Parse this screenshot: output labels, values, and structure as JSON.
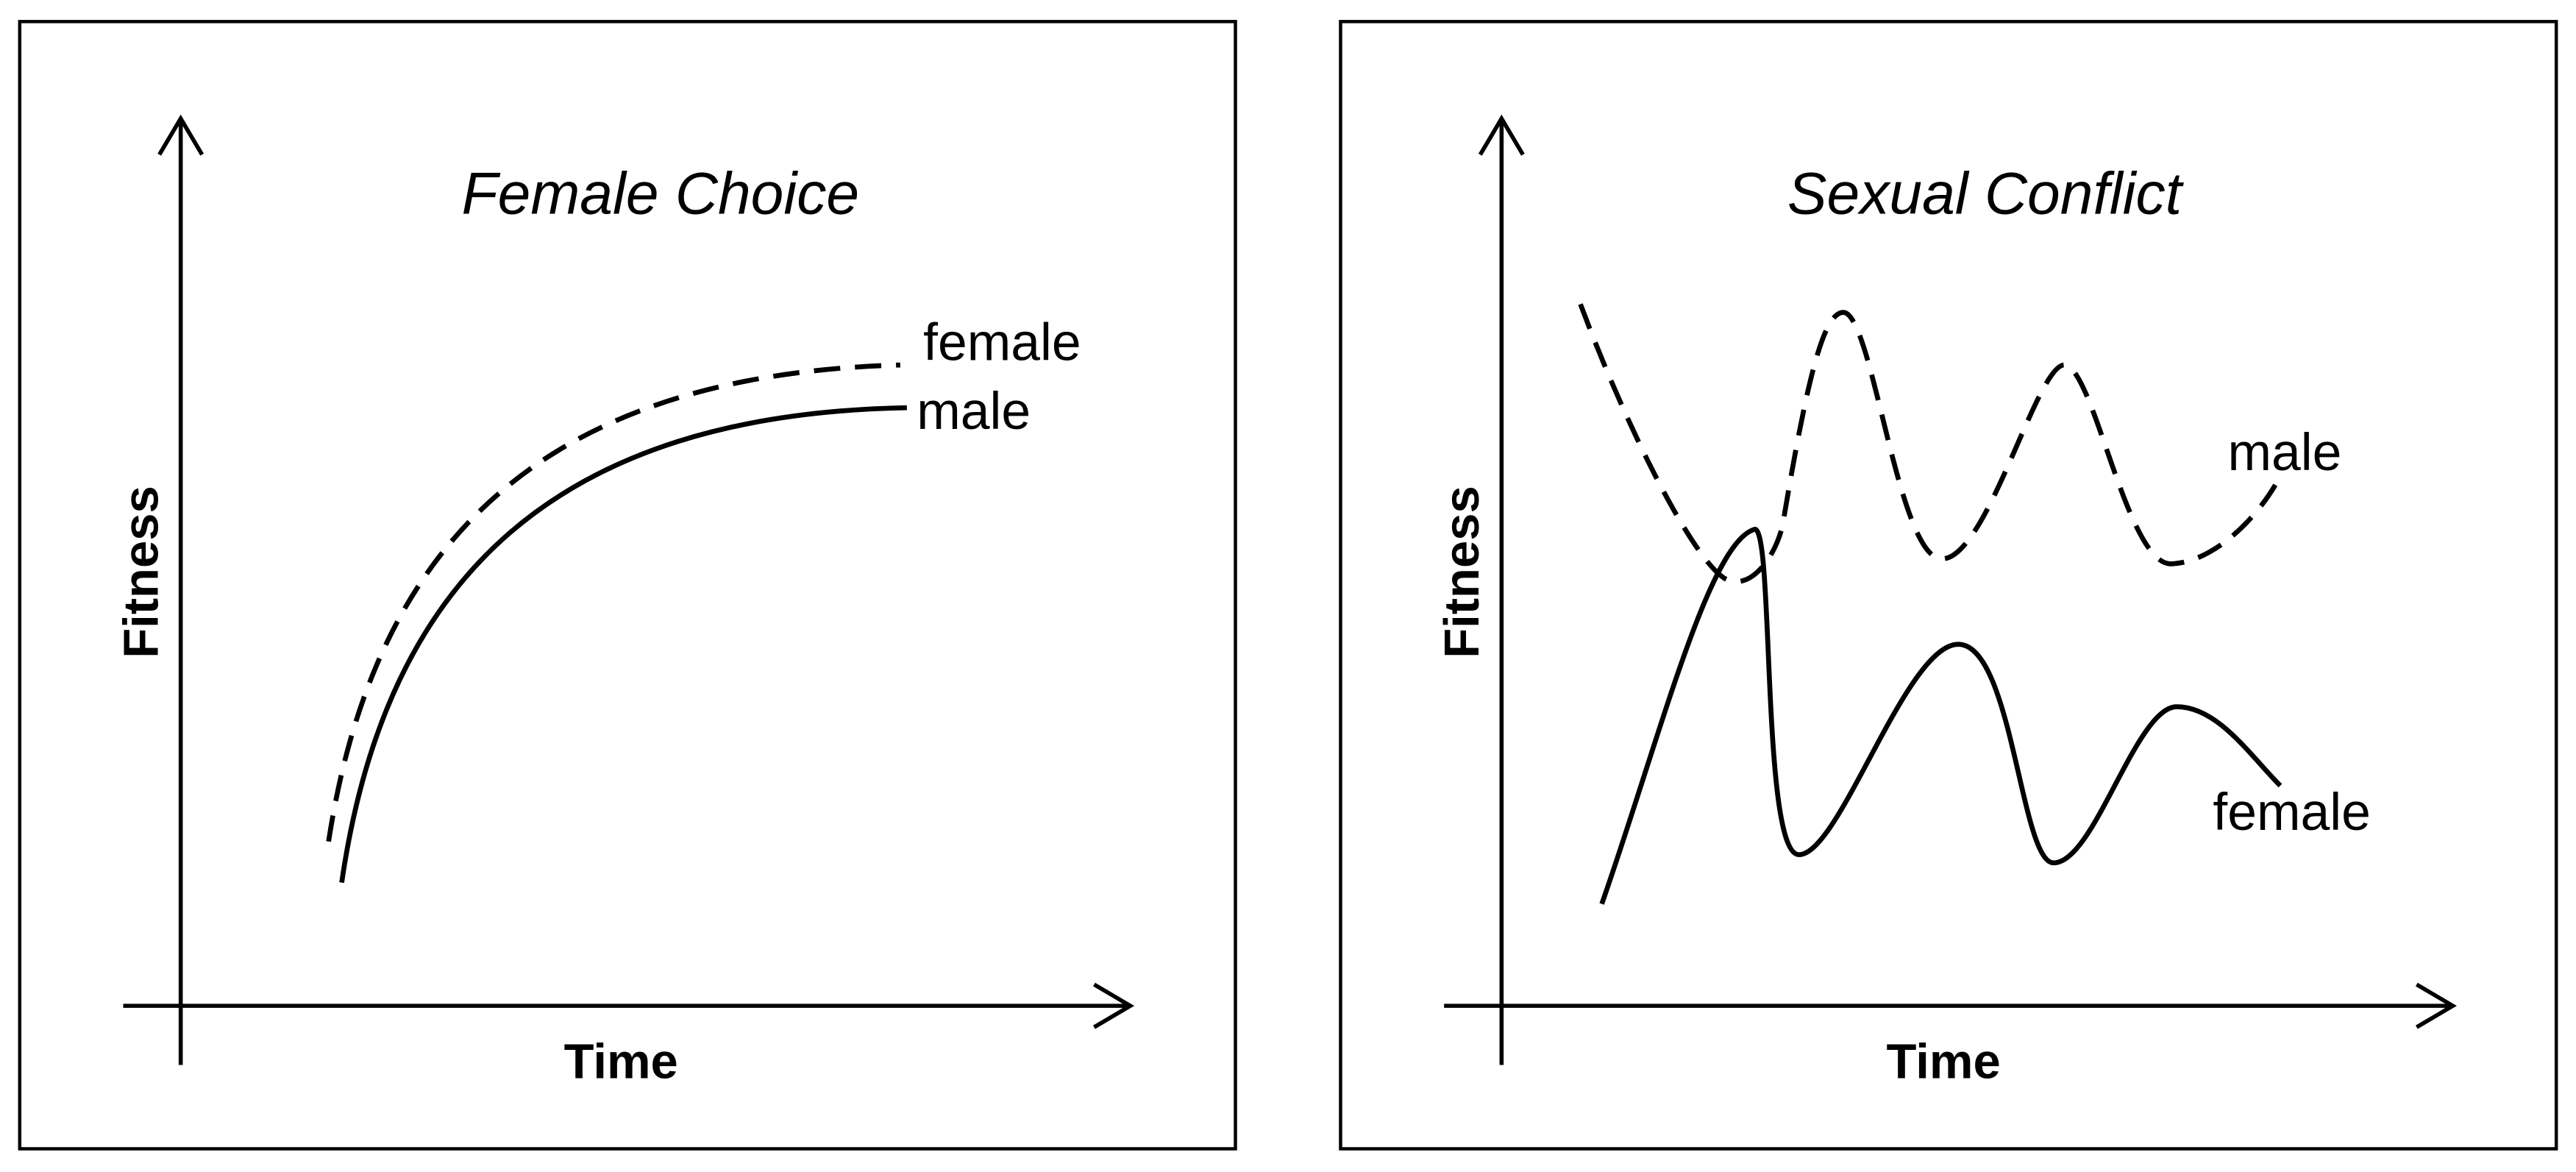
{
  "panels": [
    {
      "title": "Female Choice",
      "y_label": "Fitness",
      "x_label": "Time",
      "curves": [
        {
          "label": "female"
        },
        {
          "label": "male"
        }
      ]
    },
    {
      "title": "Sexual Conflict",
      "y_label": "Fitness",
      "x_label": "Time",
      "curves": [
        {
          "label": "male"
        },
        {
          "label": "female"
        }
      ]
    }
  ]
}
